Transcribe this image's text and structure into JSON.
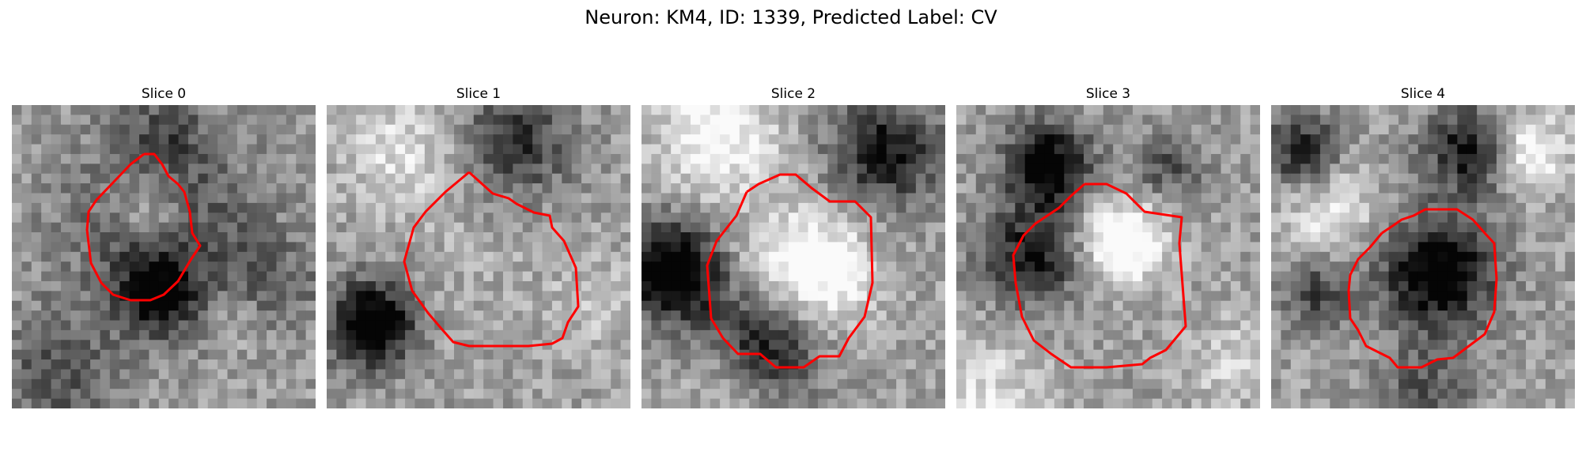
{
  "figure": {
    "title": "Neuron: KM4, ID: 1339, Predicted Label: CV",
    "outline_color": "#ff0000"
  },
  "slices": [
    {
      "label": "Slice 0"
    },
    {
      "label": "Slice 1"
    },
    {
      "label": "Slice 2"
    },
    {
      "label": "Slice 3"
    },
    {
      "label": "Slice 4"
    }
  ]
}
